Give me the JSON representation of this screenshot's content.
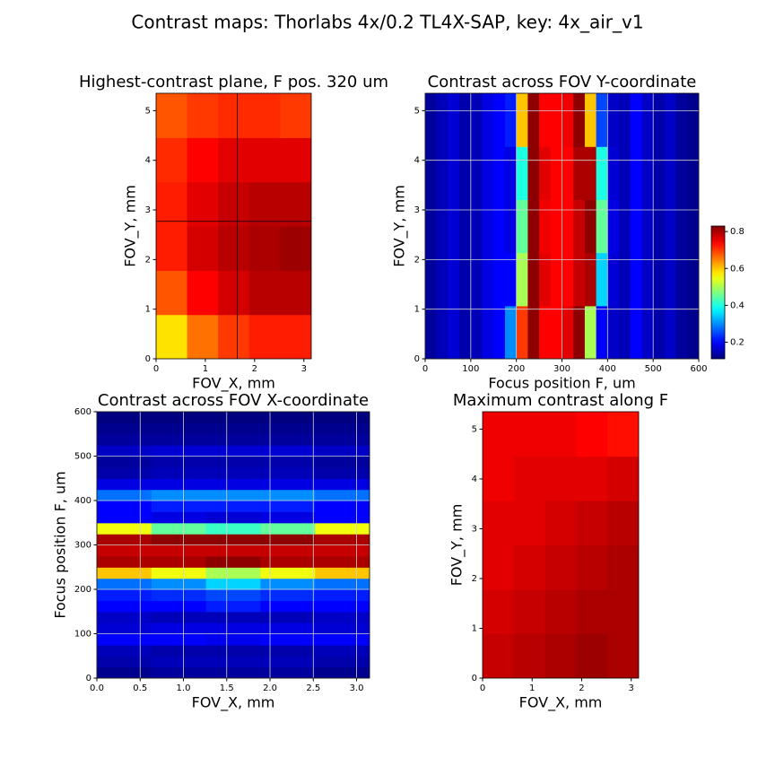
{
  "title": "Contrast maps: Thorlabs 4x/0.2 TL4X-SAP, key: 4x_air_v1",
  "chart_data": [
    {
      "type": "heatmap",
      "title": "Highest-contrast plane, F pos. 320 um",
      "xlabel": "FOV_X, mm",
      "ylabel": "FOV_Y, mm",
      "xlim": [
        0,
        3.15
      ],
      "ylim": [
        0,
        5.35
      ],
      "xticks": [
        0,
        1,
        2,
        3
      ],
      "yticks": [
        0,
        1,
        2,
        3,
        4,
        5
      ],
      "grid": false,
      "clim": [
        0.11,
        0.83
      ],
      "crosshair_x": 1.65,
      "crosshair_y": 2.77,
      "x": [
        0.315,
        0.945,
        1.575,
        2.205,
        2.835
      ],
      "y": [
        0.446,
        1.338,
        2.229,
        3.121,
        4.013,
        4.904
      ],
      "z": [
        [
          0.58,
          0.66,
          0.7,
          0.72,
          0.72
        ],
        [
          0.68,
          0.74,
          0.77,
          0.79,
          0.79
        ],
        [
          0.72,
          0.77,
          0.79,
          0.8,
          0.81
        ],
        [
          0.72,
          0.76,
          0.78,
          0.79,
          0.79
        ],
        [
          0.71,
          0.74,
          0.76,
          0.76,
          0.76
        ],
        [
          0.68,
          0.7,
          0.71,
          0.71,
          0.7
        ]
      ]
    },
    {
      "type": "heatmap",
      "title": "Contrast across FOV Y-coordinate",
      "xlabel": "Focus position F, um",
      "ylabel": "FOV_Y, mm",
      "xlim": [
        0,
        600
      ],
      "ylim": [
        0,
        5.35
      ],
      "xticks": [
        0,
        100,
        200,
        300,
        400,
        500,
        600
      ],
      "yticks": [
        0,
        1,
        2,
        3,
        4,
        5
      ],
      "grid": true,
      "clim": [
        0.11,
        0.83
      ],
      "colorbar_ticks": [
        0.2,
        0.4,
        0.6,
        0.8
      ],
      "x": [
        12.5,
        37.5,
        62.5,
        87.5,
        112.5,
        137.5,
        162.5,
        187.5,
        212.5,
        237.5,
        262.5,
        287.5,
        312.5,
        337.5,
        362.5,
        387.5,
        412.5,
        437.5,
        462.5,
        487.5,
        512.5,
        537.5,
        562.5,
        587.5
      ],
      "y": [
        0.535,
        1.605,
        2.675,
        3.745,
        4.815
      ],
      "z": [
        [
          0.13,
          0.15,
          0.17,
          0.14,
          0.15,
          0.18,
          0.2,
          0.3,
          0.7,
          0.82,
          0.74,
          0.74,
          0.76,
          0.82,
          0.5,
          0.2,
          0.16,
          0.15,
          0.2,
          0.16,
          0.14,
          0.16,
          0.13,
          0.12
        ],
        [
          0.13,
          0.15,
          0.17,
          0.14,
          0.15,
          0.18,
          0.2,
          0.2,
          0.5,
          0.82,
          0.76,
          0.74,
          0.74,
          0.78,
          0.8,
          0.35,
          0.17,
          0.15,
          0.2,
          0.16,
          0.14,
          0.16,
          0.13,
          0.12
        ],
        [
          0.13,
          0.15,
          0.17,
          0.14,
          0.15,
          0.18,
          0.2,
          0.18,
          0.45,
          0.82,
          0.75,
          0.74,
          0.74,
          0.78,
          0.82,
          0.45,
          0.18,
          0.15,
          0.2,
          0.16,
          0.14,
          0.16,
          0.13,
          0.12
        ],
        [
          0.13,
          0.15,
          0.17,
          0.14,
          0.15,
          0.18,
          0.2,
          0.18,
          0.4,
          0.82,
          0.76,
          0.74,
          0.74,
          0.8,
          0.8,
          0.4,
          0.17,
          0.15,
          0.2,
          0.16,
          0.14,
          0.16,
          0.13,
          0.12
        ],
        [
          0.13,
          0.15,
          0.17,
          0.14,
          0.15,
          0.18,
          0.2,
          0.22,
          0.6,
          0.82,
          0.74,
          0.74,
          0.75,
          0.82,
          0.6,
          0.25,
          0.16,
          0.15,
          0.2,
          0.16,
          0.14,
          0.16,
          0.13,
          0.12
        ]
      ]
    },
    {
      "type": "heatmap",
      "title": "Contrast across FOV X-coordinate",
      "xlabel": "FOV_X, mm",
      "ylabel": "Focus position F, um",
      "xlim": [
        0,
        3.15
      ],
      "ylim": [
        0,
        600
      ],
      "xticks": [
        {
          "value": 0,
          "label": "0.0"
        },
        0.5,
        {
          "value": 1,
          "label": "1.0"
        },
        1.5,
        {
          "value": 2,
          "label": "2.0"
        },
        2.5,
        {
          "value": 3,
          "label": "3.0"
        }
      ],
      "yticks": [
        0,
        100,
        200,
        300,
        400,
        500,
        600
      ],
      "grid": true,
      "clim": [
        0.11,
        0.83
      ],
      "x": [
        0.315,
        0.945,
        1.575,
        2.205,
        2.835
      ],
      "y": [
        12.5,
        37.5,
        62.5,
        87.5,
        112.5,
        137.5,
        162.5,
        187.5,
        212.5,
        237.5,
        262.5,
        287.5,
        312.5,
        337.5,
        362.5,
        387.5,
        412.5,
        437.5,
        462.5,
        487.5,
        512.5,
        537.5,
        562.5,
        587.5
      ],
      "z": [
        [
          0.12,
          0.13,
          0.13,
          0.13,
          0.12
        ],
        [
          0.14,
          0.15,
          0.15,
          0.15,
          0.14
        ],
        [
          0.15,
          0.14,
          0.14,
          0.14,
          0.15
        ],
        [
          0.2,
          0.2,
          0.19,
          0.2,
          0.2
        ],
        [
          0.17,
          0.18,
          0.18,
          0.18,
          0.17
        ],
        [
          0.16,
          0.15,
          0.15,
          0.15,
          0.16
        ],
        [
          0.2,
          0.2,
          0.22,
          0.2,
          0.2
        ],
        [
          0.22,
          0.23,
          0.25,
          0.23,
          0.22
        ],
        [
          0.28,
          0.3,
          0.35,
          0.3,
          0.28
        ],
        [
          0.6,
          0.55,
          0.5,
          0.55,
          0.6
        ],
        [
          0.8,
          0.8,
          0.82,
          0.8,
          0.8
        ],
        [
          0.78,
          0.78,
          0.78,
          0.78,
          0.78
        ],
        [
          0.8,
          0.82,
          0.82,
          0.82,
          0.8
        ],
        [
          0.55,
          0.45,
          0.42,
          0.45,
          0.55
        ],
        [
          0.2,
          0.18,
          0.17,
          0.18,
          0.2
        ],
        [
          0.2,
          0.22,
          0.22,
          0.22,
          0.2
        ],
        [
          0.28,
          0.3,
          0.3,
          0.3,
          0.28
        ],
        [
          0.18,
          0.18,
          0.18,
          0.18,
          0.18
        ],
        [
          0.14,
          0.15,
          0.15,
          0.15,
          0.14
        ],
        [
          0.13,
          0.14,
          0.14,
          0.14,
          0.13
        ],
        [
          0.16,
          0.17,
          0.17,
          0.17,
          0.16
        ],
        [
          0.13,
          0.13,
          0.13,
          0.13,
          0.13
        ],
        [
          0.12,
          0.12,
          0.12,
          0.12,
          0.12
        ],
        [
          0.11,
          0.11,
          0.11,
          0.11,
          0.11
        ]
      ]
    },
    {
      "type": "heatmap",
      "title": "Maximum contrast along F",
      "xlabel": "FOV_X, mm",
      "ylabel": "FOV_Y, mm",
      "xlim": [
        0,
        3.15
      ],
      "ylim": [
        0,
        5.35
      ],
      "xticks": [
        0,
        1,
        2,
        3
      ],
      "yticks": [
        0,
        1,
        2,
        3,
        4,
        5
      ],
      "grid": false,
      "clim": [
        0.11,
        0.83
      ],
      "x": [
        0.315,
        0.945,
        1.575,
        2.205,
        2.835
      ],
      "y": [
        0.446,
        1.338,
        2.229,
        3.121,
        4.013,
        4.904
      ],
      "z": [
        [
          0.78,
          0.79,
          0.8,
          0.81,
          0.8
        ],
        [
          0.77,
          0.78,
          0.79,
          0.8,
          0.8
        ],
        [
          0.76,
          0.77,
          0.78,
          0.79,
          0.8
        ],
        [
          0.76,
          0.76,
          0.77,
          0.78,
          0.79
        ],
        [
          0.75,
          0.76,
          0.76,
          0.76,
          0.77
        ],
        [
          0.75,
          0.75,
          0.75,
          0.74,
          0.73
        ]
      ]
    }
  ]
}
